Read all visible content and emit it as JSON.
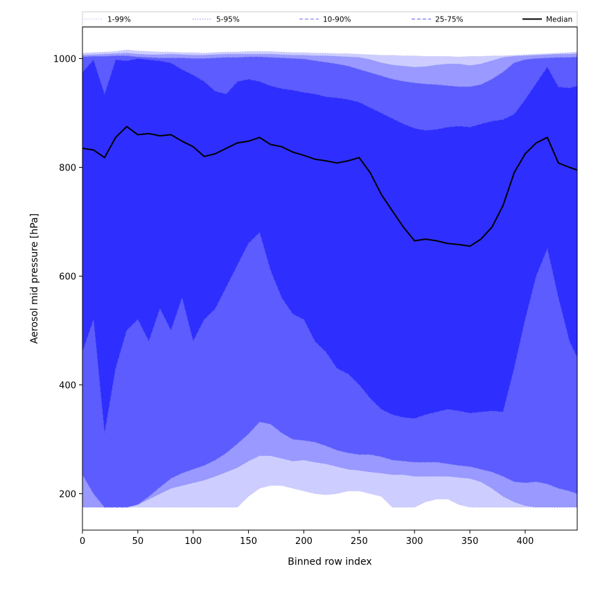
{
  "chart_data": {
    "type": "area",
    "title": "",
    "xlabel": "Binned row index",
    "ylabel": "Aerosol mid pressure [hPa]",
    "xlim": [
      0,
      447
    ],
    "ylim": [
      133,
      1058
    ],
    "xticks": [
      0,
      50,
      100,
      150,
      200,
      250,
      300,
      350,
      400
    ],
    "yticks": [
      200,
      400,
      600,
      800,
      1000
    ],
    "grid": false,
    "legend_position": "top",
    "x": [
      0,
      10,
      20,
      30,
      40,
      50,
      60,
      70,
      80,
      90,
      100,
      110,
      120,
      130,
      140,
      150,
      160,
      170,
      180,
      190,
      200,
      210,
      220,
      230,
      240,
      250,
      260,
      270,
      280,
      290,
      300,
      310,
      320,
      330,
      340,
      350,
      360,
      370,
      380,
      390,
      400,
      410,
      420,
      430,
      440,
      447
    ],
    "bands": [
      {
        "name": "1-99%",
        "color": "#cdcdff",
        "line_color": "#c0c0ee",
        "line_style": "dotted",
        "lower": [
          175,
          175,
          175,
          175,
          175,
          175,
          175,
          175,
          175,
          175,
          175,
          175,
          175,
          175,
          175,
          195,
          210,
          215,
          215,
          210,
          205,
          200,
          198,
          200,
          205,
          205,
          200,
          195,
          175,
          175,
          175,
          185,
          190,
          190,
          180,
          175,
          175,
          175,
          175,
          175,
          175,
          175,
          175,
          175,
          175,
          175
        ],
        "upper": [
          1010,
          1011,
          1012,
          1013,
          1016,
          1014,
          1013,
          1012,
          1012,
          1011,
          1011,
          1010,
          1011,
          1012,
          1012,
          1013,
          1013,
          1013,
          1012,
          1011,
          1011,
          1010,
          1010,
          1009,
          1009,
          1008,
          1007,
          1006,
          1006,
          1005,
          1005,
          1004,
          1004,
          1004,
          1003,
          1004,
          1004,
          1005,
          1005,
          1006,
          1007,
          1008,
          1009,
          1010,
          1011,
          1012
        ]
      },
      {
        "name": "5-95%",
        "color": "#9999ff",
        "line_color": "#8a8aee",
        "line_style": "dotted",
        "lower": [
          175,
          175,
          175,
          175,
          175,
          180,
          190,
          200,
          210,
          215,
          220,
          225,
          232,
          240,
          248,
          260,
          270,
          270,
          265,
          260,
          262,
          258,
          255,
          250,
          245,
          243,
          240,
          238,
          235,
          235,
          232,
          232,
          232,
          232,
          230,
          228,
          222,
          210,
          195,
          185,
          178,
          175,
          175,
          175,
          175,
          175
        ],
        "upper": [
          1006,
          1007,
          1008,
          1009,
          1010,
          1008,
          1007,
          1007,
          1008,
          1007,
          1006,
          1006,
          1007,
          1008,
          1008,
          1008,
          1008,
          1008,
          1007,
          1006,
          1006,
          1005,
          1005,
          1004,
          1003,
          1002,
          998,
          992,
          988,
          986,
          984,
          985,
          988,
          990,
          990,
          987,
          990,
          996,
          1002,
          1004,
          1005,
          1006,
          1007,
          1008,
          1008,
          1009
        ]
      },
      {
        "name": "10-90%",
        "color": "#5c5cff",
        "line_color": "#6e6ef0",
        "line_style": "dashed",
        "lower": [
          235,
          200,
          175,
          175,
          175,
          180,
          195,
          212,
          228,
          238,
          245,
          252,
          262,
          275,
          292,
          310,
          332,
          328,
          312,
          300,
          298,
          295,
          288,
          280,
          275,
          272,
          272,
          268,
          262,
          260,
          258,
          258,
          258,
          255,
          252,
          250,
          245,
          240,
          232,
          222,
          220,
          222,
          218,
          210,
          205,
          200
        ],
        "upper": [
          1003,
          1004,
          1004,
          1005,
          1005,
          1003,
          1002,
          1001,
          1001,
          1001,
          1000,
          1000,
          1001,
          1002,
          1002,
          1003,
          1003,
          1002,
          1001,
          1000,
          999,
          996,
          993,
          990,
          986,
          980,
          974,
          968,
          962,
          958,
          955,
          953,
          952,
          950,
          948,
          948,
          952,
          962,
          975,
          992,
          998,
          1000,
          1001,
          1002,
          1002,
          1003
        ]
      },
      {
        "name": "25-75%",
        "color": "#2e2eff",
        "line_color": "#5a5aee",
        "line_style": "dashed",
        "lower": [
          460,
          520,
          310,
          430,
          500,
          520,
          480,
          540,
          500,
          560,
          480,
          520,
          540,
          580,
          620,
          660,
          680,
          610,
          560,
          530,
          520,
          480,
          460,
          430,
          420,
          400,
          375,
          355,
          345,
          340,
          338,
          345,
          350,
          355,
          352,
          348,
          350,
          352,
          350,
          430,
          520,
          600,
          650,
          560,
          480,
          450
        ],
        "upper": [
          975,
          998,
          935,
          998,
          996,
          1000,
          998,
          996,
          992,
          980,
          970,
          958,
          940,
          935,
          958,
          962,
          958,
          950,
          945,
          942,
          938,
          935,
          930,
          928,
          925,
          920,
          910,
          900,
          890,
          880,
          872,
          868,
          870,
          874,
          876,
          874,
          880,
          885,
          888,
          898,
          925,
          955,
          985,
          948,
          946,
          950
        ]
      }
    ],
    "series": [
      {
        "name": "Median",
        "color": "#000000",
        "values": [
          835,
          832,
          818,
          855,
          875,
          860,
          862,
          858,
          860,
          848,
          838,
          820,
          825,
          835,
          845,
          848,
          855,
          842,
          838,
          828,
          822,
          815,
          812,
          808,
          812,
          818,
          790,
          750,
          720,
          690,
          665,
          668,
          665,
          660,
          658,
          655,
          668,
          690,
          730,
          790,
          825,
          845,
          855,
          808,
          800,
          795
        ]
      }
    ]
  }
}
